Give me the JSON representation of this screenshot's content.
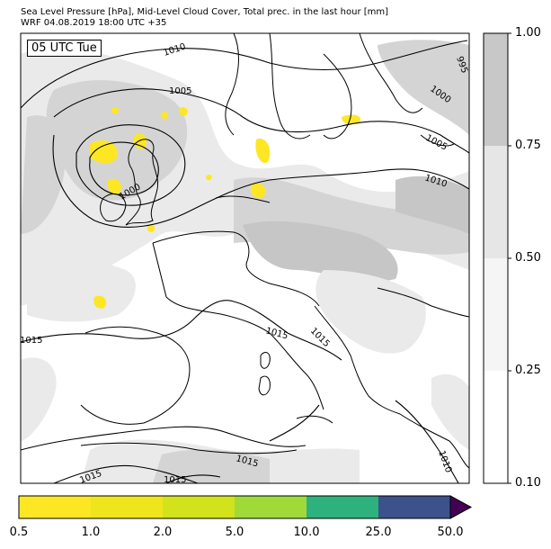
{
  "header": {
    "title_line1": "Sea Level Pressure [hPa], Mid-Level Cloud Cover, Total prec. in the last hour [mm]",
    "title_line2": "WRF 04.08.2019 18:00 UTC +35"
  },
  "map": {
    "time_stamp": "05 UTC Tue",
    "isobar_labels": [
      "1010",
      "1005",
      "995",
      "1000",
      "1005",
      "1010",
      "1000",
      "1015",
      "1015",
      "1015",
      "1015",
      "1010",
      "1015",
      "1015"
    ],
    "colors": {
      "land_line": "#000000",
      "cloud_light": "#e9e9e9",
      "cloud_mid": "#d2d2d2",
      "cloud_dark": "#c3c3c3",
      "precip": "#fde725"
    }
  },
  "cloud_colorbar": {
    "ticks": [
      "1.00",
      "0.75",
      "0.50",
      "0.25",
      "0.10"
    ],
    "colors": [
      "#c8c8c8",
      "#e6e6e6",
      "#f5f5f5",
      "#ffffff"
    ]
  },
  "precip_colorbar": {
    "ticks": [
      "0.5",
      "1.0",
      "2.0",
      "5.0",
      "10.0",
      "25.0",
      "50.0"
    ],
    "colors": [
      "#fde725",
      "#efe51c",
      "#d2e21b",
      "#a0da39",
      "#4ac16d",
      "#2db27d",
      "#3b528b"
    ],
    "extend_color": "#440154"
  }
}
